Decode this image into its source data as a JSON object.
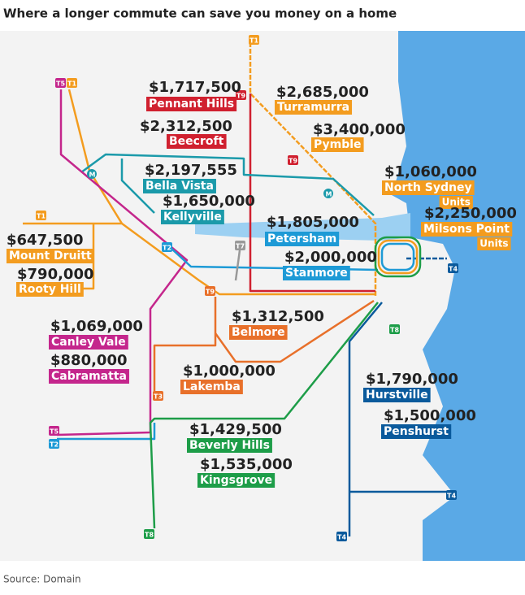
{
  "title": "Where a longer commute can save you money on a home",
  "source": "Source: Domain",
  "suburbs": [
    {
      "price": "$1,717,500",
      "name": "Pennant Hills"
    },
    {
      "price": "$2,312,500",
      "name": "Beecroft"
    },
    {
      "price": "$2,685,000",
      "name": "Turramurra"
    },
    {
      "price": "$3,400,000",
      "name": "Pymble"
    },
    {
      "price": "$2,197,555",
      "name": "Bella Vista"
    },
    {
      "price": "$1,650,000",
      "name": "Kellyville"
    },
    {
      "price": "$1,060,000",
      "name": "North Sydney",
      "note": "Units"
    },
    {
      "price": "$2,250,000",
      "name": "Milsons Point",
      "note": "Units"
    },
    {
      "price": "$647,500",
      "name": "Mount Druitt"
    },
    {
      "price": "$790,000",
      "name": "Rooty Hill"
    },
    {
      "price": "$1,805,000",
      "name": "Petersham"
    },
    {
      "price": "$2,000,000",
      "name": "Stanmore"
    },
    {
      "price": "$1,312,500",
      "name": "Belmore"
    },
    {
      "price": "$1,069,000",
      "name": "Canley Vale"
    },
    {
      "price": "$880,000",
      "name": "Cabramatta"
    },
    {
      "price": "$1,000,000",
      "name": "Lakemba"
    },
    {
      "price": "$1,790,000",
      "name": "Hurstville"
    },
    {
      "price": "$1,500,000",
      "name": "Penshurst"
    },
    {
      "price": "$1,429,500",
      "name": "Beverly Hills"
    },
    {
      "price": "$1,535,000",
      "name": "Kingsgrove"
    }
  ],
  "line_badges": [
    "T1",
    "T5",
    "T1",
    "T9",
    "T9",
    "M",
    "M",
    "T1",
    "T2",
    "T7",
    "T9",
    "T4",
    "T8",
    "T3",
    "T5",
    "T2",
    "T4",
    "T8",
    "T4"
  ]
}
